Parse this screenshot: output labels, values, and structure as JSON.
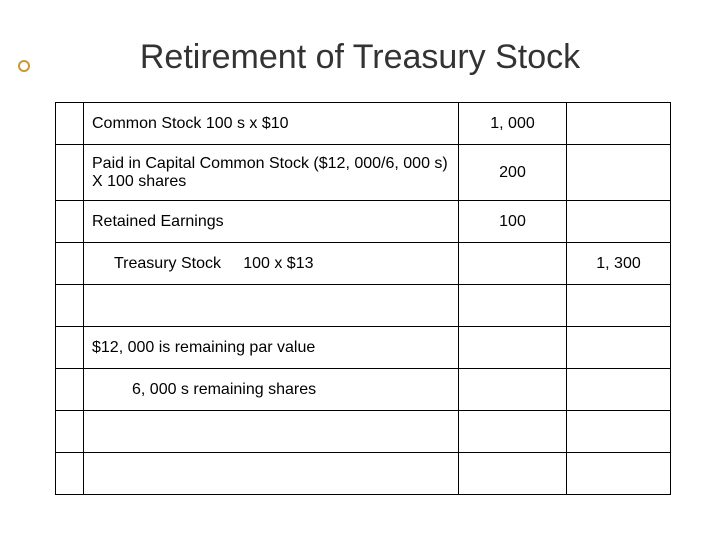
{
  "title": "Retirement of Treasury Stock",
  "table": {
    "rows": [
      {
        "desc": "Common Stock 100 s x $10",
        "debit": "1, 000",
        "credit": "",
        "indent": 0,
        "tall": false
      },
      {
        "desc": "Paid in Capital Common Stock ($12, 000/6, 000 s) X 100 shares",
        "debit": "200",
        "credit": "",
        "indent": 0,
        "tall": true
      },
      {
        "desc": "Retained Earnings",
        "debit": "100",
        "credit": "",
        "indent": 0,
        "tall": false
      },
      {
        "desc": "Treasury Stock     100 x $13",
        "debit": "",
        "credit": "1, 300",
        "indent": 1,
        "tall": false
      },
      {
        "desc": "",
        "debit": "",
        "credit": "",
        "indent": 0,
        "tall": false
      },
      {
        "desc": "$12, 000 is remaining par value",
        "debit": "",
        "credit": "",
        "indent": 0,
        "tall": false
      },
      {
        "desc": "6, 000 s remaining shares",
        "debit": "",
        "credit": "",
        "indent": 2,
        "tall": false
      },
      {
        "desc": "",
        "debit": "",
        "credit": "",
        "indent": 0,
        "tall": false
      },
      {
        "desc": "",
        "debit": "",
        "credit": "",
        "indent": 0,
        "tall": false
      }
    ]
  },
  "colors": {
    "border": "#000000",
    "text": "#000000",
    "title": "#333333",
    "background": "#ffffff",
    "bullet": "#cc9933"
  }
}
